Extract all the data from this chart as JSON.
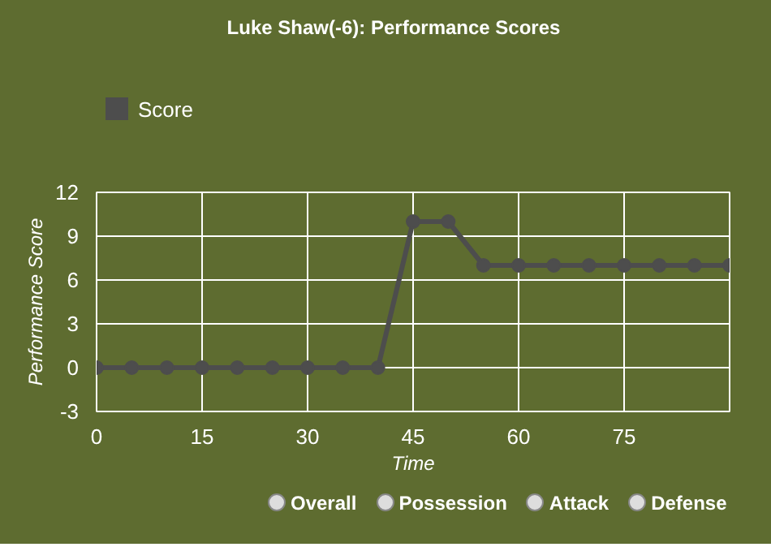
{
  "chart_data": {
    "type": "line",
    "title": "Luke Shaw(-6): Performance Scores",
    "xlabel": "Time",
    "ylabel": "Performance Score",
    "x": [
      0,
      5,
      10,
      15,
      20,
      25,
      30,
      35,
      40,
      45,
      50,
      55,
      60,
      65,
      70,
      75,
      80,
      85,
      90
    ],
    "series": [
      {
        "name": "Score",
        "color": "#4d4d4d",
        "values": [
          0,
          0,
          0,
          0,
          0,
          0,
          0,
          0,
          0,
          10,
          10,
          7,
          7,
          7,
          7,
          7,
          7,
          7,
          7
        ]
      }
    ],
    "xlim": [
      0,
      90
    ],
    "xticks": [
      0,
      15,
      30,
      45,
      60,
      75
    ],
    "ylim": [
      -3,
      12
    ],
    "yticks": [
      -3,
      0,
      3,
      6,
      9,
      12
    ],
    "grid": true,
    "legend": "top left",
    "marker": "circle",
    "line_style": "solid",
    "annotations": [
      "Overall",
      "Possession",
      "Attack",
      "Defense"
    ]
  }
}
